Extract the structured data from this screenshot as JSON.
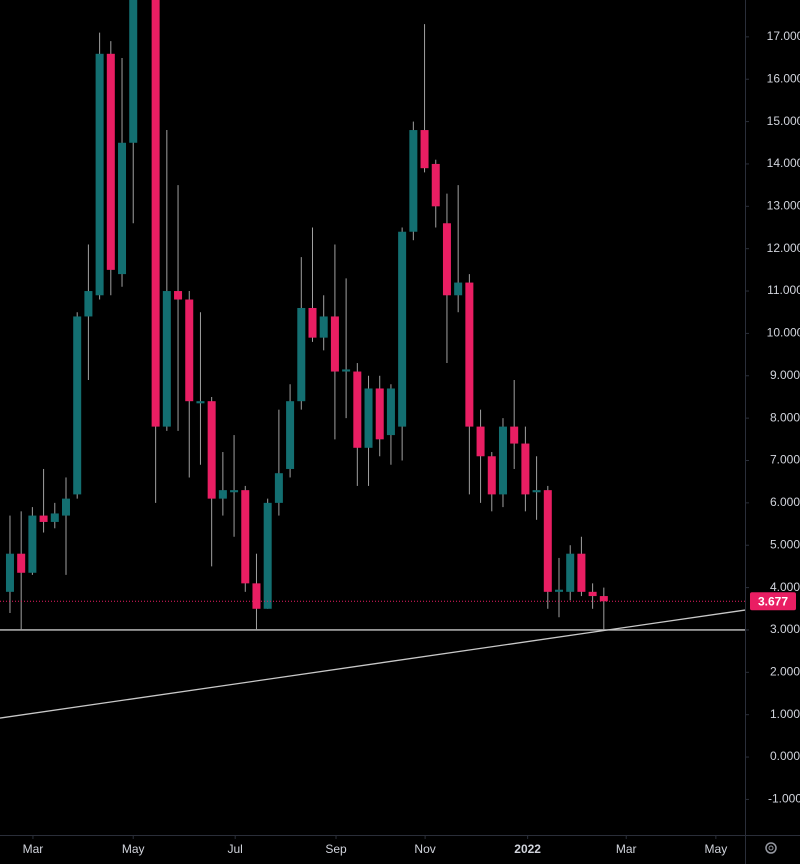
{
  "chart_data": {
    "type": "candlestick",
    "x": [
      0,
      1,
      2,
      3,
      4,
      5,
      6,
      7,
      8,
      9,
      10,
      11,
      13,
      14,
      15,
      16,
      17,
      18,
      19,
      20,
      21,
      22,
      23,
      24,
      25,
      26,
      27,
      28,
      29,
      30,
      31,
      32,
      33,
      34,
      35,
      36,
      37,
      38,
      39,
      40,
      41,
      42,
      43,
      44,
      45,
      46,
      47,
      48,
      49,
      50,
      51,
      52,
      53
    ],
    "open": [
      3.9,
      4.8,
      4.35,
      5.7,
      5.55,
      5.7,
      6.2,
      10.4,
      10.9,
      16.6,
      11.4,
      14.5,
      18.2,
      7.8,
      11.0,
      10.8,
      8.35,
      8.4,
      6.1,
      6.25,
      6.3,
      4.1,
      3.5,
      6.0,
      6.8,
      8.4,
      10.6,
      9.9,
      10.4,
      9.1,
      9.1,
      7.3,
      8.7,
      7.6,
      7.8,
      12.4,
      14.8,
      14.0,
      12.6,
      10.9,
      11.2,
      7.8,
      7.1,
      6.2,
      7.8,
      7.4,
      6.25,
      6.3,
      3.9,
      3.9,
      4.8,
      3.9,
      3.8
    ],
    "high": [
      5.7,
      5.8,
      5.9,
      6.8,
      6.0,
      6.6,
      10.5,
      12.1,
      17.1,
      16.9,
      16.5,
      18.3,
      18.3,
      14.8,
      13.5,
      11.0,
      10.5,
      8.5,
      7.2,
      7.6,
      6.4,
      4.8,
      6.1,
      8.2,
      8.8,
      11.8,
      12.5,
      10.9,
      12.1,
      11.3,
      9.3,
      9.0,
      9.0,
      8.8,
      12.5,
      15.0,
      17.3,
      14.1,
      13.3,
      13.5,
      11.4,
      8.2,
      7.2,
      8.0,
      8.9,
      7.8,
      7.1,
      6.4,
      4.7,
      5.0,
      5.2,
      4.1,
      4.0
    ],
    "low": [
      3.4,
      3.0,
      4.3,
      5.3,
      5.4,
      4.3,
      6.1,
      8.9,
      10.8,
      10.9,
      11.1,
      12.6,
      6.0,
      7.7,
      7.7,
      6.6,
      6.9,
      4.5,
      5.7,
      5.2,
      3.9,
      3.0,
      3.5,
      5.7,
      6.6,
      8.2,
      9.8,
      9.6,
      7.5,
      8.0,
      6.4,
      6.4,
      7.1,
      6.9,
      7.0,
      12.2,
      13.8,
      12.5,
      9.3,
      10.5,
      6.2,
      6.0,
      5.8,
      5.9,
      6.8,
      5.8,
      5.6,
      3.5,
      3.3,
      3.7,
      3.8,
      3.5,
      3.0
    ],
    "close": [
      4.8,
      4.35,
      5.7,
      5.55,
      5.75,
      6.1,
      10.4,
      11.0,
      16.6,
      11.5,
      14.5,
      18.2,
      7.8,
      11.0,
      10.8,
      8.4,
      8.4,
      6.1,
      6.3,
      6.3,
      4.1,
      3.5,
      6.0,
      6.7,
      8.4,
      10.6,
      9.9,
      10.4,
      9.1,
      9.15,
      7.3,
      8.7,
      7.5,
      8.7,
      12.4,
      14.8,
      13.9,
      13.0,
      10.9,
      11.2,
      7.8,
      7.1,
      6.2,
      7.8,
      7.4,
      6.2,
      6.3,
      3.9,
      3.95,
      4.8,
      3.9,
      3.8,
      3.677
    ],
    "up_color": "#136f71",
    "down_color": "#e91e63",
    "xlim": [
      -0.89,
      65.6
    ],
    "xticks": [
      {
        "value": 2.05,
        "label": "Mar"
      },
      {
        "value": 11,
        "label": "May"
      },
      {
        "value": 20.1,
        "label": "Jul"
      },
      {
        "value": 29.1,
        "label": "Sep"
      },
      {
        "value": 37.05,
        "label": "Nov"
      },
      {
        "value": 46.2,
        "label": "2022"
      },
      {
        "value": 55,
        "label": "Mar"
      },
      {
        "value": 63,
        "label": "May"
      }
    ],
    "ylim": [
      -1.84,
      17.87
    ],
    "yticks": [
      {
        "value": -1,
        "label": "-1.000"
      },
      {
        "value": 0,
        "label": "0.000"
      },
      {
        "value": 1,
        "label": "1.000"
      },
      {
        "value": 2,
        "label": "2.000"
      },
      {
        "value": 3,
        "label": "3.000"
      },
      {
        "value": 4,
        "label": "4.000"
      },
      {
        "value": 5,
        "label": "5.000"
      },
      {
        "value": 6,
        "label": "6.000"
      },
      {
        "value": 7,
        "label": "7.000"
      },
      {
        "value": 8,
        "label": "8.000"
      },
      {
        "value": 9,
        "label": "9.000"
      },
      {
        "value": 10,
        "label": "10.000"
      },
      {
        "value": 11,
        "label": "11.000"
      },
      {
        "value": 12,
        "label": "12.000"
      },
      {
        "value": 13,
        "label": "13.000"
      },
      {
        "value": 14,
        "label": "14.000"
      },
      {
        "value": 15,
        "label": "15.000"
      },
      {
        "value": 16,
        "label": "16.000"
      },
      {
        "value": 17,
        "label": "17.000"
      }
    ],
    "hlines": [
      3
    ],
    "trendline": {
      "x": [
        -0.89,
        65.6
      ],
      "y": [
        0.92,
        3.47
      ]
    },
    "last_price": 3.677
  }
}
